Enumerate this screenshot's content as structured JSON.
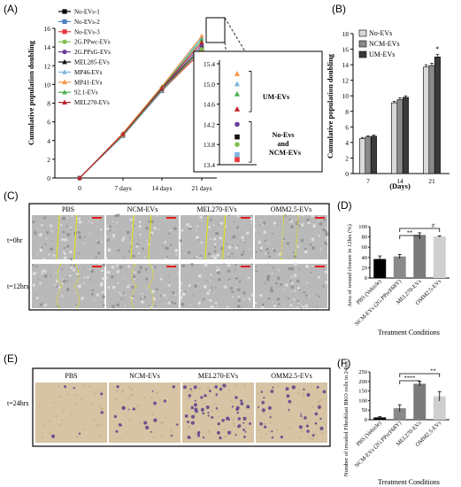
{
  "panel_labels": [
    "(A)",
    "(B)",
    "(C)",
    "(D)",
    "(E)",
    "(F)"
  ],
  "colors": {
    "bar_light": "#d9d9d9",
    "bar_mid": "#8a8a8a",
    "bar_dark": "#3a3a3a",
    "bar_black": "#000000",
    "scratch_outline": "#e6e600",
    "scale_bar": "#e41a1c",
    "cell_bg": "#b9b9b9",
    "invasion_bg": "#d7c4a4",
    "invasion_cell": "#5b3f8c"
  },
  "panel_c": {
    "columns": [
      "PBS",
      "NCM-EVs",
      "MEL270-EVs",
      "OMM2.5-EVs"
    ],
    "rows": [
      "t=0hr",
      "t=12hrs"
    ]
  },
  "panel_e": {
    "columns": [
      "PBS",
      "NCM-EVs",
      "MEL270-EVs",
      "OMM2.5-EVs"
    ],
    "row": "t=24hrs"
  },
  "chart_data": [
    {
      "id": "A",
      "type": "line",
      "ylabel": "Cumulative population doubling",
      "categories": [
        "0",
        "7 days",
        "14 days",
        "21 days"
      ],
      "ylim": [
        0,
        16
      ],
      "yticks": [
        0,
        2,
        4,
        6,
        8,
        10,
        12,
        14,
        16
      ],
      "legend_position": "top-left",
      "series": [
        {
          "name": "No-EVs-1",
          "color": "#000000",
          "marker": "square",
          "values": [
            0,
            4.6,
            9.5,
            13.9
          ]
        },
        {
          "name": "No-EVs-2",
          "color": "#4f81bd",
          "marker": "square",
          "values": [
            0,
            4.5,
            9.3,
            13.6
          ]
        },
        {
          "name": "No-EVs-3",
          "color": "#e8383d",
          "marker": "square",
          "values": [
            0,
            4.6,
            9.4,
            13.5
          ]
        },
        {
          "name": "2G.PPwc-EVs",
          "color": "#7fbf4d",
          "marker": "circle",
          "values": [
            0,
            4.6,
            9.4,
            13.8
          ]
        },
        {
          "name": "2G.PPxG-EVs",
          "color": "#6a3d9a",
          "marker": "circle",
          "values": [
            0,
            4.7,
            9.5,
            14.2
          ]
        },
        {
          "name": "MEL285-EVs",
          "color": "#111111",
          "marker": "triangle",
          "values": [
            0,
            4.7,
            9.6,
            14.5
          ]
        },
        {
          "name": "MP46-EVs",
          "color": "#7eb6e0",
          "marker": "triangle",
          "values": [
            0,
            4.8,
            9.7,
            15.0
          ]
        },
        {
          "name": "MP41-EVs",
          "color": "#f79646",
          "marker": "triangle",
          "values": [
            0,
            4.8,
            9.8,
            15.2
          ]
        },
        {
          "name": "92.1-EVs",
          "color": "#4caf50",
          "marker": "triangle",
          "values": [
            0,
            4.7,
            9.7,
            14.8
          ]
        },
        {
          "name": "MEL270-EVs",
          "color": "#c0202a",
          "marker": "triangle",
          "values": [
            0,
            4.7,
            9.6,
            14.5
          ]
        }
      ],
      "inset": {
        "ylim": [
          13.4,
          15.4
        ],
        "yticks": [
          "13.4",
          "13.8",
          "14.2",
          "14.6",
          "15.0",
          "15.4"
        ],
        "group_labels": [
          "UM-EVs",
          "No-Evs",
          "and",
          "NCM-EVs"
        ],
        "points": [
          {
            "y": 15.2,
            "color": "#f79646",
            "marker": "triangle"
          },
          {
            "y": 15.0,
            "color": "#7eb6e0",
            "marker": "triangle"
          },
          {
            "y": 14.8,
            "color": "#4caf50",
            "marker": "triangle"
          },
          {
            "y": 14.5,
            "color": "#c0202a",
            "marker": "triangle"
          },
          {
            "y": 14.2,
            "color": "#6a3d9a",
            "marker": "circle"
          },
          {
            "y": 13.95,
            "color": "#111111",
            "marker": "square"
          },
          {
            "y": 13.8,
            "color": "#7fbf4d",
            "marker": "circle"
          },
          {
            "y": 13.6,
            "color": "#7eb6e0",
            "marker": "square"
          },
          {
            "y": 13.5,
            "color": "#e8383d",
            "marker": "square"
          }
        ]
      }
    },
    {
      "id": "B",
      "type": "bar",
      "ylabel": "Cumulative population doubling",
      "xlabel": "(Days)",
      "categories": [
        "7",
        "14",
        "21"
      ],
      "ylim": [
        0,
        18
      ],
      "yticks": [
        0,
        2,
        4,
        6,
        8,
        10,
        12,
        14,
        16,
        18
      ],
      "legend_position": "top-left",
      "series": [
        {
          "name": "No-EVs",
          "color": "#d9d9d9",
          "values": [
            4.5,
            9.1,
            13.7
          ],
          "errors": [
            0.15,
            0.2,
            0.3
          ]
        },
        {
          "name": "NCM-EVs",
          "color": "#8a8a8a",
          "values": [
            4.7,
            9.5,
            13.9
          ],
          "errors": [
            0.15,
            0.25,
            0.3
          ]
        },
        {
          "name": "UM-EVs",
          "color": "#3a3a3a",
          "values": [
            4.8,
            9.8,
            15.0
          ],
          "errors": [
            0.15,
            0.2,
            0.3
          ]
        }
      ],
      "annotations": [
        "*"
      ]
    },
    {
      "id": "D",
      "type": "bar",
      "ylabel": "Area of wound closure in 12hrs (%)",
      "xlabel": "Treatment Conditions",
      "categories": [
        "PBS (Vehicle)",
        "NCM-EVs (2G.PPscF68Y)",
        "MEL270-EVs",
        "OMM2.5-EVs"
      ],
      "ylim": [
        0,
        100
      ],
      "yticks": [
        0,
        20,
        40,
        60,
        80,
        100
      ],
      "values": [
        37,
        42,
        84,
        81
      ],
      "errors": [
        6,
        4,
        4,
        1
      ],
      "colors": [
        "#000000",
        "#8a8a8a",
        "#7a7a7a",
        "#cfcfcf"
      ],
      "significance": [
        "**",
        "#"
      ]
    },
    {
      "id": "F",
      "type": "bar",
      "ylabel": "Number of invaded Fibroblast BKO cells in 24hrs",
      "xlabel": "Treatment Conditions",
      "categories": [
        "PBS (Vehicle)",
        "NCM-EVs (2G.PPscF68Y)",
        "MEL270-EVs",
        "OMM2.5-EVs"
      ],
      "ylim": [
        0,
        250
      ],
      "yticks": [
        0,
        50,
        100,
        150,
        200,
        250
      ],
      "values": [
        12,
        60,
        188,
        122
      ],
      "errors": [
        4,
        18,
        12,
        25
      ],
      "colors": [
        "#000000",
        "#8a8a8a",
        "#7a7a7a",
        "#cfcfcf"
      ],
      "significance": [
        "****",
        "**"
      ]
    }
  ]
}
